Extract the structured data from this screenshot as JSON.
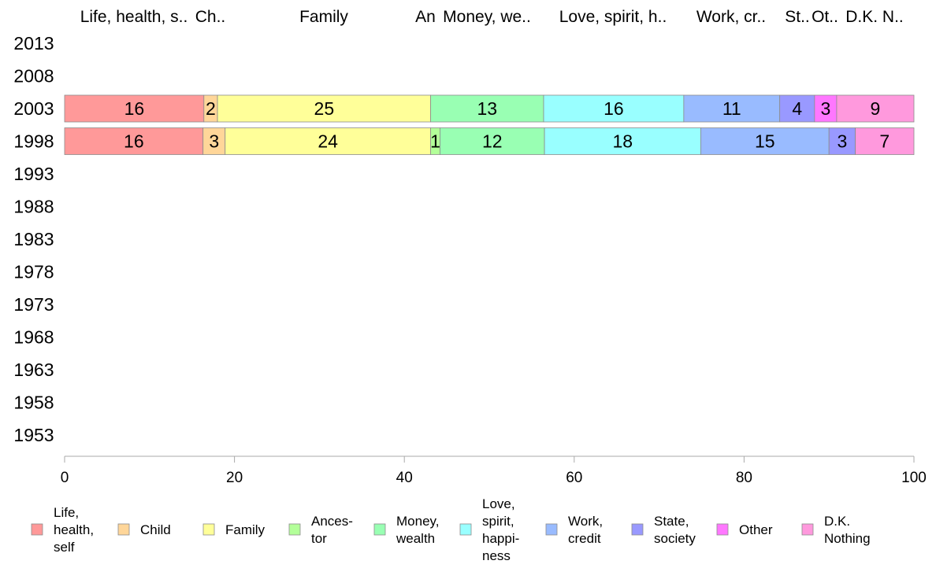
{
  "chart_data": {
    "type": "bar",
    "orientation": "horizontal",
    "stacked": true,
    "years": [
      "2013",
      "2008",
      "2003",
      "1998",
      "1993",
      "1988",
      "1983",
      "1978",
      "1973",
      "1968",
      "1963",
      "1958",
      "1953"
    ],
    "top_labels": [
      "Life, health, s..",
      "Ch..",
      "Family",
      "An",
      "Money, we..",
      "Love, spirit, h..",
      "Work, cr..",
      "St..",
      "Ot..",
      "D.K. N.."
    ],
    "series": [
      {
        "name": "Life, health, self",
        "legend_lines": [
          "Life,",
          "health,",
          "self"
        ],
        "color": "#ff9999",
        "values": {
          "2003": 16.4,
          "1998": 16.3
        }
      },
      {
        "name": "Child",
        "legend_lines": [
          "Child"
        ],
        "color": "#ffd699",
        "values": {
          "2003": 1.6,
          "1998": 2.6
        }
      },
      {
        "name": "Family",
        "legend_lines": [
          "Family"
        ],
        "color": "#ffff99",
        "values": {
          "2003": 25.1,
          "1998": 24.2
        }
      },
      {
        "name": "Ancestor",
        "legend_lines": [
          "Ances-",
          "tor"
        ],
        "color": "#b3ff99",
        "values": {
          "2003": 0,
          "1998": 1.1
        }
      },
      {
        "name": "Money, wealth",
        "legend_lines": [
          "Money,",
          "wealth"
        ],
        "color": "#99ffb3",
        "values": {
          "2003": 13.3,
          "1998": 12.3
        }
      },
      {
        "name": "Love, spirit, happiness",
        "legend_lines": [
          "Love,",
          "spirit,",
          "happi-",
          "ness"
        ],
        "color": "#99ffff",
        "values": {
          "2003": 16.5,
          "1998": 18.4
        }
      },
      {
        "name": "Work, credit",
        "legend_lines": [
          "Work,",
          "credit"
        ],
        "color": "#99bbff",
        "values": {
          "2003": 11.3,
          "1998": 15.1
        }
      },
      {
        "name": "State, society",
        "legend_lines": [
          "State,",
          "society"
        ],
        "color": "#9999ff",
        "values": {
          "2003": 4.1,
          "1998": 3.1
        }
      },
      {
        "name": "Other",
        "legend_lines": [
          "Other"
        ],
        "color": "#ff77ff",
        "values": {
          "2003": 2.6,
          "1998": 0
        }
      },
      {
        "name": "D.K. Nothing",
        "legend_lines": [
          "D.K.",
          "Nothing"
        ],
        "color": "#ff99dd",
        "values": {
          "2003": 9.1,
          "1998": 6.9
        }
      }
    ],
    "data_labels": {
      "2003": [
        "16",
        "2",
        "25",
        "",
        "13",
        "16",
        "11",
        "4",
        "3",
        "9"
      ],
      "1998": [
        "16",
        "3",
        "24",
        "1",
        "12",
        "18",
        "15",
        "3",
        "",
        "7"
      ]
    },
    "xlim": [
      0,
      100
    ],
    "xticks": [
      "0",
      "20",
      "40",
      "60",
      "80",
      "100"
    ],
    "grid": false,
    "legend_position": "bottom"
  }
}
